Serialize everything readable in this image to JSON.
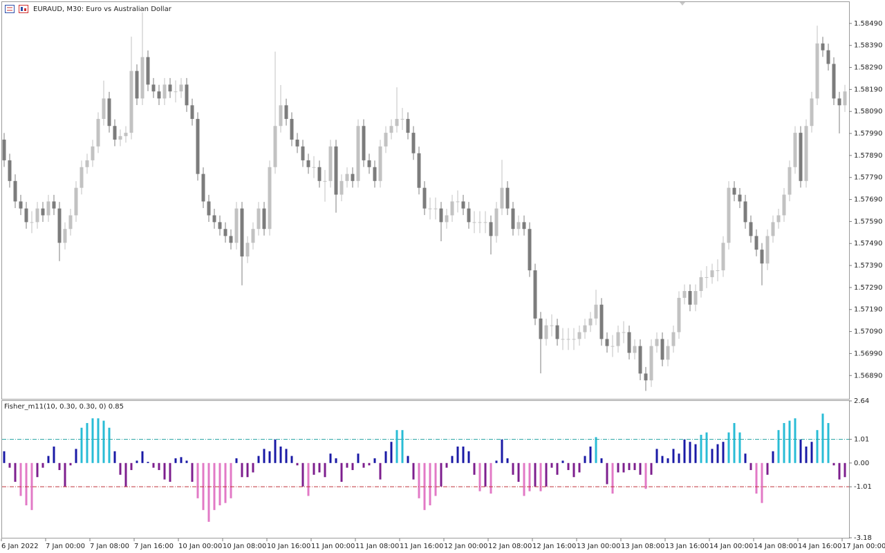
{
  "chart_data": [
    {
      "type": "candlestick",
      "title": "EURAUD, M30:  Euro vs Australian Dollar",
      "open": [
        1.57962,
        1.57868,
        1.57774,
        1.57681,
        1.57649,
        1.57587,
        1.57587,
        1.57649,
        1.57618,
        1.57681,
        1.57649,
        1.57493,
        1.57556,
        1.57618,
        1.57743,
        1.57837,
        1.57868,
        1.57931,
        1.58056,
        1.58149,
        1.58024,
        1.57962,
        1.57978,
        1.57993,
        1.58274,
        1.58149,
        1.58337,
        1.58212,
        1.58181,
        1.58149,
        1.58212,
        1.58181,
        1.58181,
        1.58212,
        1.58118,
        1.58056,
        1.57806,
        1.57681,
        1.57618,
        1.57587,
        1.57556,
        1.57524,
        1.57493,
        1.57649,
        1.57431,
        1.57493,
        1.57556,
        1.57649,
        1.57556,
        1.57837,
        1.58024,
        1.58118,
        1.58056,
        1.57962,
        1.57931,
        1.57868,
        1.57837,
        1.57837,
        1.57774,
        1.57774,
        1.57931,
        1.57712,
        1.57774,
        1.57806,
        1.57774,
        1.58024,
        1.57868,
        1.57837,
        1.57774,
        1.57931,
        1.57993,
        1.58024,
        1.58056,
        1.58056,
        1.57993,
        1.579,
        1.57743,
        1.57649,
        1.57649,
        1.57649,
        1.57587,
        1.57618,
        1.57681,
        1.57681,
        1.57649,
        1.57587,
        1.57587,
        1.57587,
        1.57587,
        1.57524,
        1.57649,
        1.57743,
        1.57649,
        1.57556,
        1.57587,
        1.57556,
        1.57368,
        1.57149,
        1.57056,
        1.57118,
        1.57118,
        1.57056,
        1.57056,
        1.57056,
        1.57056,
        1.57087,
        1.57118,
        1.57149,
        1.57212,
        1.57056,
        1.57024,
        1.57024,
        1.57087,
        1.57087,
        1.56993,
        1.57024,
        1.56899,
        1.56868,
        1.57024,
        1.57056,
        1.56962,
        1.57024,
        1.57087,
        1.57243,
        1.57274,
        1.57212,
        1.57274,
        1.57337,
        1.57337,
        1.57368,
        1.57368,
        1.57493,
        1.57743,
        1.57712,
        1.57681,
        1.57587,
        1.57524,
        1.57462,
        1.57399,
        1.57524,
        1.57587,
        1.57618,
        1.57712,
        1.57837,
        1.57993,
        1.57774,
        1.58024,
        1.58149,
        1.58399,
        1.58368,
        1.58306,
        1.58149,
        1.58118
      ],
      "high": [
        1.57992,
        1.57898,
        1.57804,
        1.57711,
        1.57679,
        1.57637,
        1.57679,
        1.57679,
        1.57711,
        1.57711,
        1.57679,
        1.57586,
        1.57648,
        1.57773,
        1.57867,
        1.57898,
        1.57961,
        1.58086,
        1.5823,
        1.58179,
        1.58054,
        1.58008,
        1.58023,
        1.5843,
        1.58304,
        1.5854,
        1.58367,
        1.58242,
        1.58211,
        1.58242,
        1.58242,
        1.58231,
        1.58242,
        1.58242,
        1.58148,
        1.58086,
        1.57836,
        1.57711,
        1.57648,
        1.57617,
        1.57586,
        1.57554,
        1.57679,
        1.57679,
        1.57523,
        1.57586,
        1.57679,
        1.57679,
        1.57867,
        1.58362,
        1.5821,
        1.58148,
        1.58086,
        1.57992,
        1.57961,
        1.57898,
        1.57887,
        1.57867,
        1.57824,
        1.57961,
        1.57961,
        1.57804,
        1.57836,
        1.57836,
        1.58054,
        1.58054,
        1.57898,
        1.57867,
        1.57961,
        1.58023,
        1.58054,
        1.582,
        1.58106,
        1.58086,
        1.58023,
        1.5793,
        1.57773,
        1.57699,
        1.57699,
        1.57679,
        1.57648,
        1.57711,
        1.57731,
        1.57711,
        1.57679,
        1.57637,
        1.57637,
        1.57637,
        1.57617,
        1.57679,
        1.5787,
        1.57773,
        1.57679,
        1.57617,
        1.57617,
        1.57586,
        1.57398,
        1.57179,
        1.57148,
        1.57168,
        1.57148,
        1.57106,
        1.57106,
        1.57106,
        1.57117,
        1.57148,
        1.57179,
        1.5728,
        1.57242,
        1.57086,
        1.57074,
        1.57117,
        1.57137,
        1.57117,
        1.57054,
        1.57054,
        1.56929,
        1.57054,
        1.57086,
        1.57086,
        1.57054,
        1.57117,
        1.57273,
        1.57304,
        1.57304,
        1.57304,
        1.57367,
        1.57387,
        1.57398,
        1.57418,
        1.57523,
        1.57773,
        1.57773,
        1.57742,
        1.57711,
        1.57617,
        1.57554,
        1.57492,
        1.57554,
        1.57617,
        1.57648,
        1.57742,
        1.57867,
        1.58023,
        1.58023,
        1.58054,
        1.58179,
        1.5848,
        1.58429,
        1.58398,
        1.58336,
        1.58179,
        1.58211
      ],
      "low": [
        1.57838,
        1.57744,
        1.57651,
        1.57619,
        1.57557,
        1.57537,
        1.57557,
        1.57588,
        1.57588,
        1.57619,
        1.5741,
        1.57463,
        1.57526,
        1.57588,
        1.57713,
        1.57807,
        1.57838,
        1.57901,
        1.58026,
        1.57994,
        1.57932,
        1.57932,
        1.57948,
        1.57963,
        1.58119,
        1.58119,
        1.58182,
        1.58151,
        1.58119,
        1.58119,
        1.58151,
        1.58131,
        1.58151,
        1.58088,
        1.58026,
        1.57776,
        1.57651,
        1.57588,
        1.57557,
        1.57526,
        1.57494,
        1.57463,
        1.57463,
        1.573,
        1.57401,
        1.57463,
        1.57526,
        1.57526,
        1.57526,
        1.57807,
        1.57994,
        1.58026,
        1.57932,
        1.57901,
        1.57838,
        1.57807,
        1.57787,
        1.57744,
        1.5768,
        1.57744,
        1.5763,
        1.57682,
        1.57744,
        1.57744,
        1.57744,
        1.57838,
        1.57807,
        1.57744,
        1.57744,
        1.57901,
        1.57963,
        1.57994,
        1.58006,
        1.57963,
        1.5787,
        1.57713,
        1.57619,
        1.57599,
        1.57599,
        1.575,
        1.57557,
        1.57588,
        1.57631,
        1.57619,
        1.57557,
        1.57537,
        1.57537,
        1.57537,
        1.5744,
        1.57494,
        1.57619,
        1.57619,
        1.57526,
        1.57526,
        1.57526,
        1.57338,
        1.57119,
        1.569,
        1.57026,
        1.57068,
        1.57026,
        1.57006,
        1.57006,
        1.57006,
        1.57026,
        1.57057,
        1.57088,
        1.57119,
        1.57026,
        1.56994,
        1.56974,
        1.56994,
        1.57037,
        1.56963,
        1.56963,
        1.56869,
        1.5682,
        1.56838,
        1.56994,
        1.56932,
        1.56932,
        1.56994,
        1.57057,
        1.57213,
        1.57182,
        1.57182,
        1.57244,
        1.57287,
        1.57307,
        1.57318,
        1.57338,
        1.57463,
        1.57682,
        1.57651,
        1.57557,
        1.57494,
        1.57432,
        1.573,
        1.57369,
        1.57494,
        1.57557,
        1.57588,
        1.57682,
        1.57807,
        1.57744,
        1.57744,
        1.57994,
        1.58119,
        1.58338,
        1.58276,
        1.58119,
        1.5799,
        1.58088
      ],
      "close": [
        1.57868,
        1.57774,
        1.57681,
        1.57649,
        1.57587,
        1.57587,
        1.57649,
        1.57618,
        1.57681,
        1.57649,
        1.57493,
        1.57556,
        1.57618,
        1.57743,
        1.57837,
        1.57868,
        1.57931,
        1.58056,
        1.58149,
        1.58024,
        1.57962,
        1.57978,
        1.57993,
        1.58274,
        1.58149,
        1.58337,
        1.58212,
        1.58181,
        1.58149,
        1.58212,
        1.58181,
        1.58181,
        1.58212,
        1.58118,
        1.58056,
        1.57806,
        1.57681,
        1.57618,
        1.57587,
        1.57556,
        1.57524,
        1.57493,
        1.57649,
        1.57431,
        1.57493,
        1.57556,
        1.57649,
        1.57556,
        1.57837,
        1.58024,
        1.58118,
        1.58056,
        1.57962,
        1.57931,
        1.57868,
        1.57837,
        1.57837,
        1.57774,
        1.57774,
        1.57931,
        1.57712,
        1.57774,
        1.57806,
        1.57774,
        1.58024,
        1.57868,
        1.57837,
        1.57774,
        1.57931,
        1.57993,
        1.58024,
        1.58056,
        1.58056,
        1.57993,
        1.579,
        1.57743,
        1.57649,
        1.57649,
        1.57649,
        1.57587,
        1.57618,
        1.57681,
        1.57681,
        1.57649,
        1.57587,
        1.57587,
        1.57587,
        1.57587,
        1.57524,
        1.57649,
        1.57743,
        1.57649,
        1.57556,
        1.57587,
        1.57556,
        1.57368,
        1.57149,
        1.57056,
        1.57118,
        1.57118,
        1.57056,
        1.57056,
        1.57056,
        1.57056,
        1.57087,
        1.57118,
        1.57149,
        1.57212,
        1.57056,
        1.57024,
        1.57024,
        1.57087,
        1.57087,
        1.56993,
        1.57024,
        1.56899,
        1.56868,
        1.57024,
        1.57056,
        1.56962,
        1.57024,
        1.57087,
        1.57243,
        1.57274,
        1.57212,
        1.57274,
        1.57337,
        1.57337,
        1.57368,
        1.57368,
        1.57493,
        1.57743,
        1.57712,
        1.57681,
        1.57587,
        1.57524,
        1.57462,
        1.57399,
        1.57524,
        1.57587,
        1.57618,
        1.57712,
        1.57837,
        1.57993,
        1.57774,
        1.58024,
        1.58149,
        1.58399,
        1.58368,
        1.58306,
        1.58149,
        1.58118,
        1.58181
      ],
      "up_color": "#c2c2c2",
      "down_color": "#7c7c7c",
      "ylim": [
        1.56784,
        1.58587
      ],
      "yticks": [
        {
          "value": 1.5849,
          "label": "1.58490"
        },
        {
          "value": 1.5839,
          "label": "1.58390"
        },
        {
          "value": 1.5829,
          "label": "1.58290"
        },
        {
          "value": 1.5819,
          "label": "1.58190"
        },
        {
          "value": 1.5809,
          "label": "1.58090"
        },
        {
          "value": 1.5799,
          "label": "1.57990"
        },
        {
          "value": 1.5789,
          "label": "1.57890"
        },
        {
          "value": 1.5779,
          "label": "1.57790"
        },
        {
          "value": 1.5769,
          "label": "1.57690"
        },
        {
          "value": 1.5759,
          "label": "1.57590"
        },
        {
          "value": 1.5749,
          "label": "1.57490"
        },
        {
          "value": 1.5739,
          "label": "1.57390"
        },
        {
          "value": 1.5729,
          "label": "1.57290"
        },
        {
          "value": 1.5719,
          "label": "1.57190"
        },
        {
          "value": 1.5709,
          "label": "1.57090"
        },
        {
          "value": 1.5699,
          "label": "1.56990"
        },
        {
          "value": 1.5689,
          "label": "1.56890"
        }
      ],
      "time_labels": [
        "6 Jan 2022",
        "7 Jan 00:00",
        "7 Jan 08:00",
        "7 Jan 16:00",
        "10 Jan 00:00",
        "10 Jan 08:00",
        "10 Jan 16:00",
        "11 Jan 00:00",
        "11 Jan 08:00",
        "11 Jan 16:00",
        "12 Jan 00:00",
        "12 Jan 08:00",
        "12 Jan 16:00",
        "13 Jan 00:00",
        "13 Jan 08:00",
        "13 Jan 16:00",
        "14 Jan 00:00",
        "14 Jan 08:00",
        "14 Jan 16:00",
        "17 Jan 00:00"
      ]
    },
    {
      "type": "bar",
      "title": "Fisher_m11(10, 0.30, 0.30, 0) 0.85",
      "values": [
        0.5,
        -0.2,
        -0.8,
        -1.4,
        -1.8,
        -2.0,
        -0.6,
        -0.2,
        0.3,
        0.7,
        -0.3,
        -1.0,
        -0.1,
        0.6,
        1.5,
        1.7,
        1.9,
        1.9,
        1.8,
        1.5,
        0.5,
        -0.5,
        -1.0,
        -0.3,
        0.1,
        0.5,
        0.05,
        -0.2,
        -0.3,
        -0.7,
        -0.8,
        0.2,
        0.25,
        0.1,
        -0.8,
        -1.5,
        -2.0,
        -2.5,
        -2.0,
        -1.8,
        -1.7,
        -1.5,
        0.2,
        -0.6,
        -0.6,
        -0.4,
        0.3,
        0.6,
        0.5,
        1.0,
        0.7,
        0.6,
        0.3,
        -0.1,
        -1.0,
        -1.4,
        -0.5,
        -0.4,
        -0.6,
        0.4,
        0.2,
        -0.8,
        -0.2,
        -0.3,
        0.4,
        -0.2,
        -0.1,
        0.2,
        -0.7,
        0.5,
        0.9,
        1.4,
        1.4,
        0.3,
        -0.7,
        -1.5,
        -2.0,
        -1.8,
        -1.4,
        -1.0,
        -0.2,
        0.3,
        0.7,
        0.7,
        0.5,
        -0.5,
        -1.2,
        -1.0,
        -1.3,
        0.1,
        1.0,
        0.2,
        -0.5,
        -0.8,
        -1.4,
        -1.2,
        -1.0,
        -1.2,
        -1.0,
        -0.2,
        -0.5,
        0.1,
        -0.3,
        -0.6,
        -0.4,
        0.3,
        0.7,
        1.1,
        0.2,
        -0.9,
        -1.3,
        -0.4,
        -0.4,
        -0.3,
        -0.3,
        -0.5,
        -1.1,
        -0.5,
        0.6,
        0.3,
        0.2,
        0.6,
        0.4,
        1.0,
        0.9,
        0.8,
        1.2,
        1.3,
        0.6,
        0.8,
        0.9,
        1.3,
        1.7,
        1.3,
        0.4,
        -0.3,
        -1.3,
        -1.7,
        -0.5,
        0.5,
        1.4,
        1.7,
        1.8,
        1.9,
        1.0,
        0.7,
        0.9,
        1.4,
        2.1,
        1.7,
        -0.1,
        -0.7,
        -0.6
      ],
      "colors": [
        "#29bcd6",
        "#1a1aa6",
        "#7d1f8e",
        "#e279c6"
      ],
      "levels": [
        1.01,
        -1.01
      ],
      "level_colors": [
        "#2aa6a6",
        "#c0303a"
      ],
      "ylim": [
        -3.18,
        2.64
      ],
      "yticks": [
        2.64,
        1.01,
        {
          "value": 0,
          "label": "0.00"
        },
        -1.01,
        -3.18
      ]
    }
  ]
}
